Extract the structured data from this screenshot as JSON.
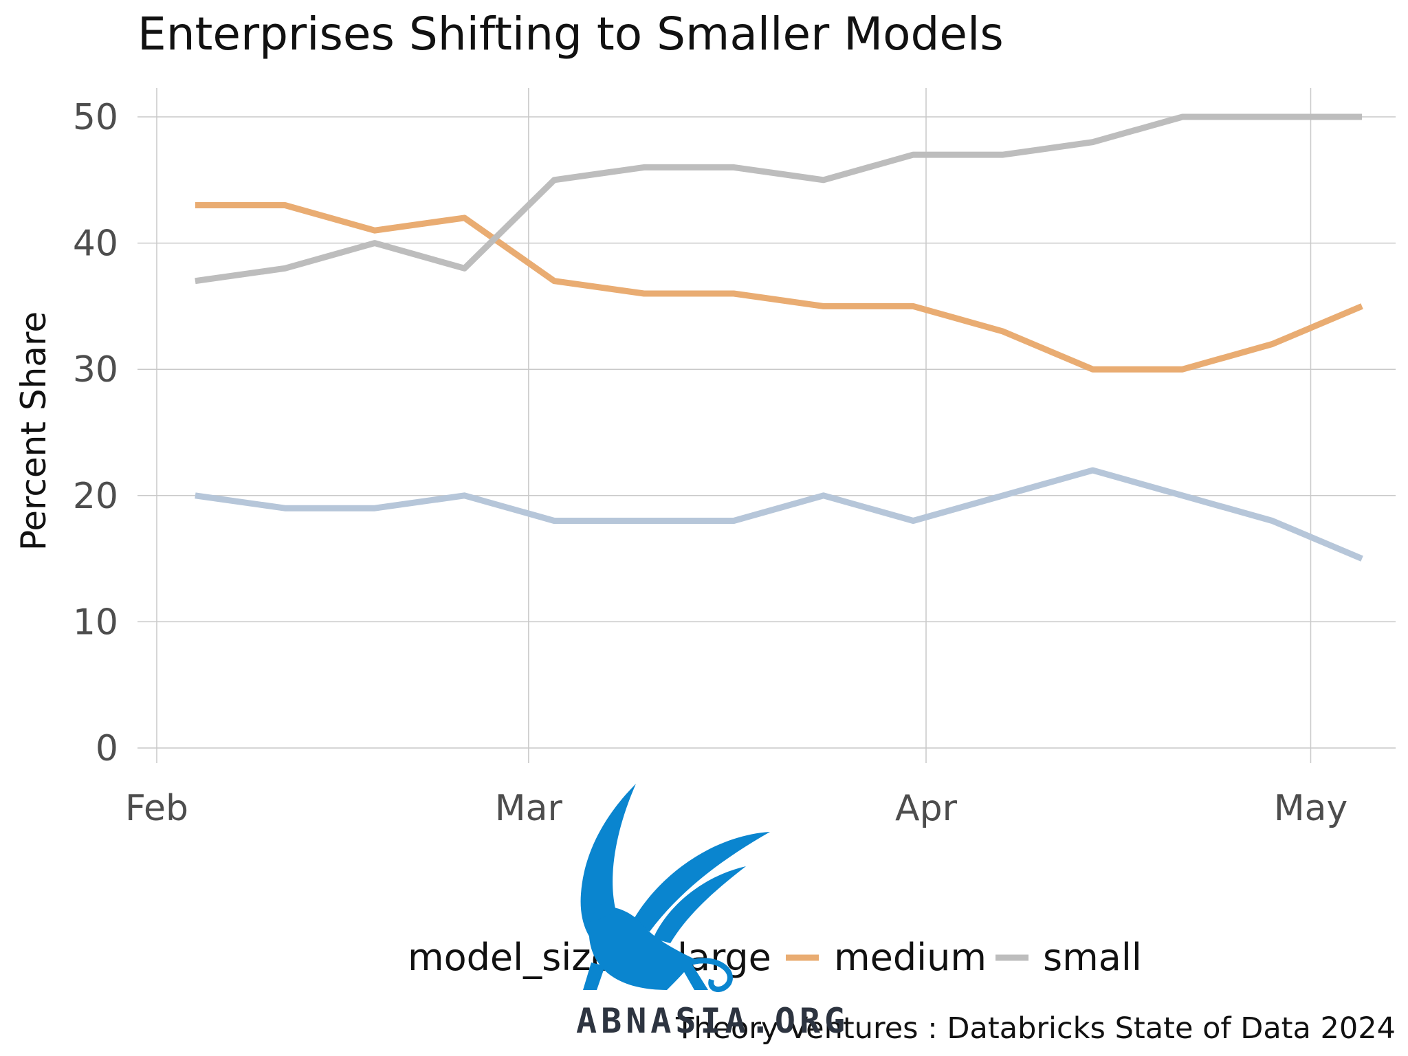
{
  "chart_data": {
    "type": "line",
    "title": "Enterprises Shifting to Smaller Models",
    "xlabel": "",
    "ylabel": "Percent Share",
    "ylim": [
      0,
      50
    ],
    "y_ticks": [
      "0",
      "10",
      "20",
      "30",
      "40",
      "50"
    ],
    "y_tick_values": [
      0,
      10,
      20,
      30,
      40,
      50
    ],
    "x_ticks": [
      "Feb",
      "Mar",
      "Apr",
      "May"
    ],
    "x_tick_days": [
      0,
      29,
      60,
      90
    ],
    "x_days": [
      3,
      10,
      17,
      24,
      31,
      38,
      45,
      52,
      59,
      66,
      73,
      80,
      87,
      94
    ],
    "series": [
      {
        "name": "large",
        "color": "#b6c6d9",
        "values": [
          20,
          19,
          19,
          20,
          18,
          18,
          18,
          20,
          18,
          20,
          22,
          20,
          18,
          15
        ]
      },
      {
        "name": "medium",
        "color": "#e9ac72",
        "values": [
          43,
          43,
          41,
          42,
          37,
          36,
          36,
          35,
          35,
          33,
          30,
          30,
          32,
          35
        ]
      },
      {
        "name": "small",
        "color": "#bdbdbd",
        "values": [
          37,
          38,
          40,
          38,
          45,
          46,
          46,
          45,
          47,
          47,
          48,
          50,
          50,
          50
        ]
      }
    ],
    "legend": {
      "title": "model_size",
      "position": "bottom"
    },
    "caption": "Theory Ventures : Databricks State of Data 2024",
    "grid": true
  },
  "watermark": {
    "text": "ABNASIA.ORG",
    "color": "#0a85cf"
  }
}
